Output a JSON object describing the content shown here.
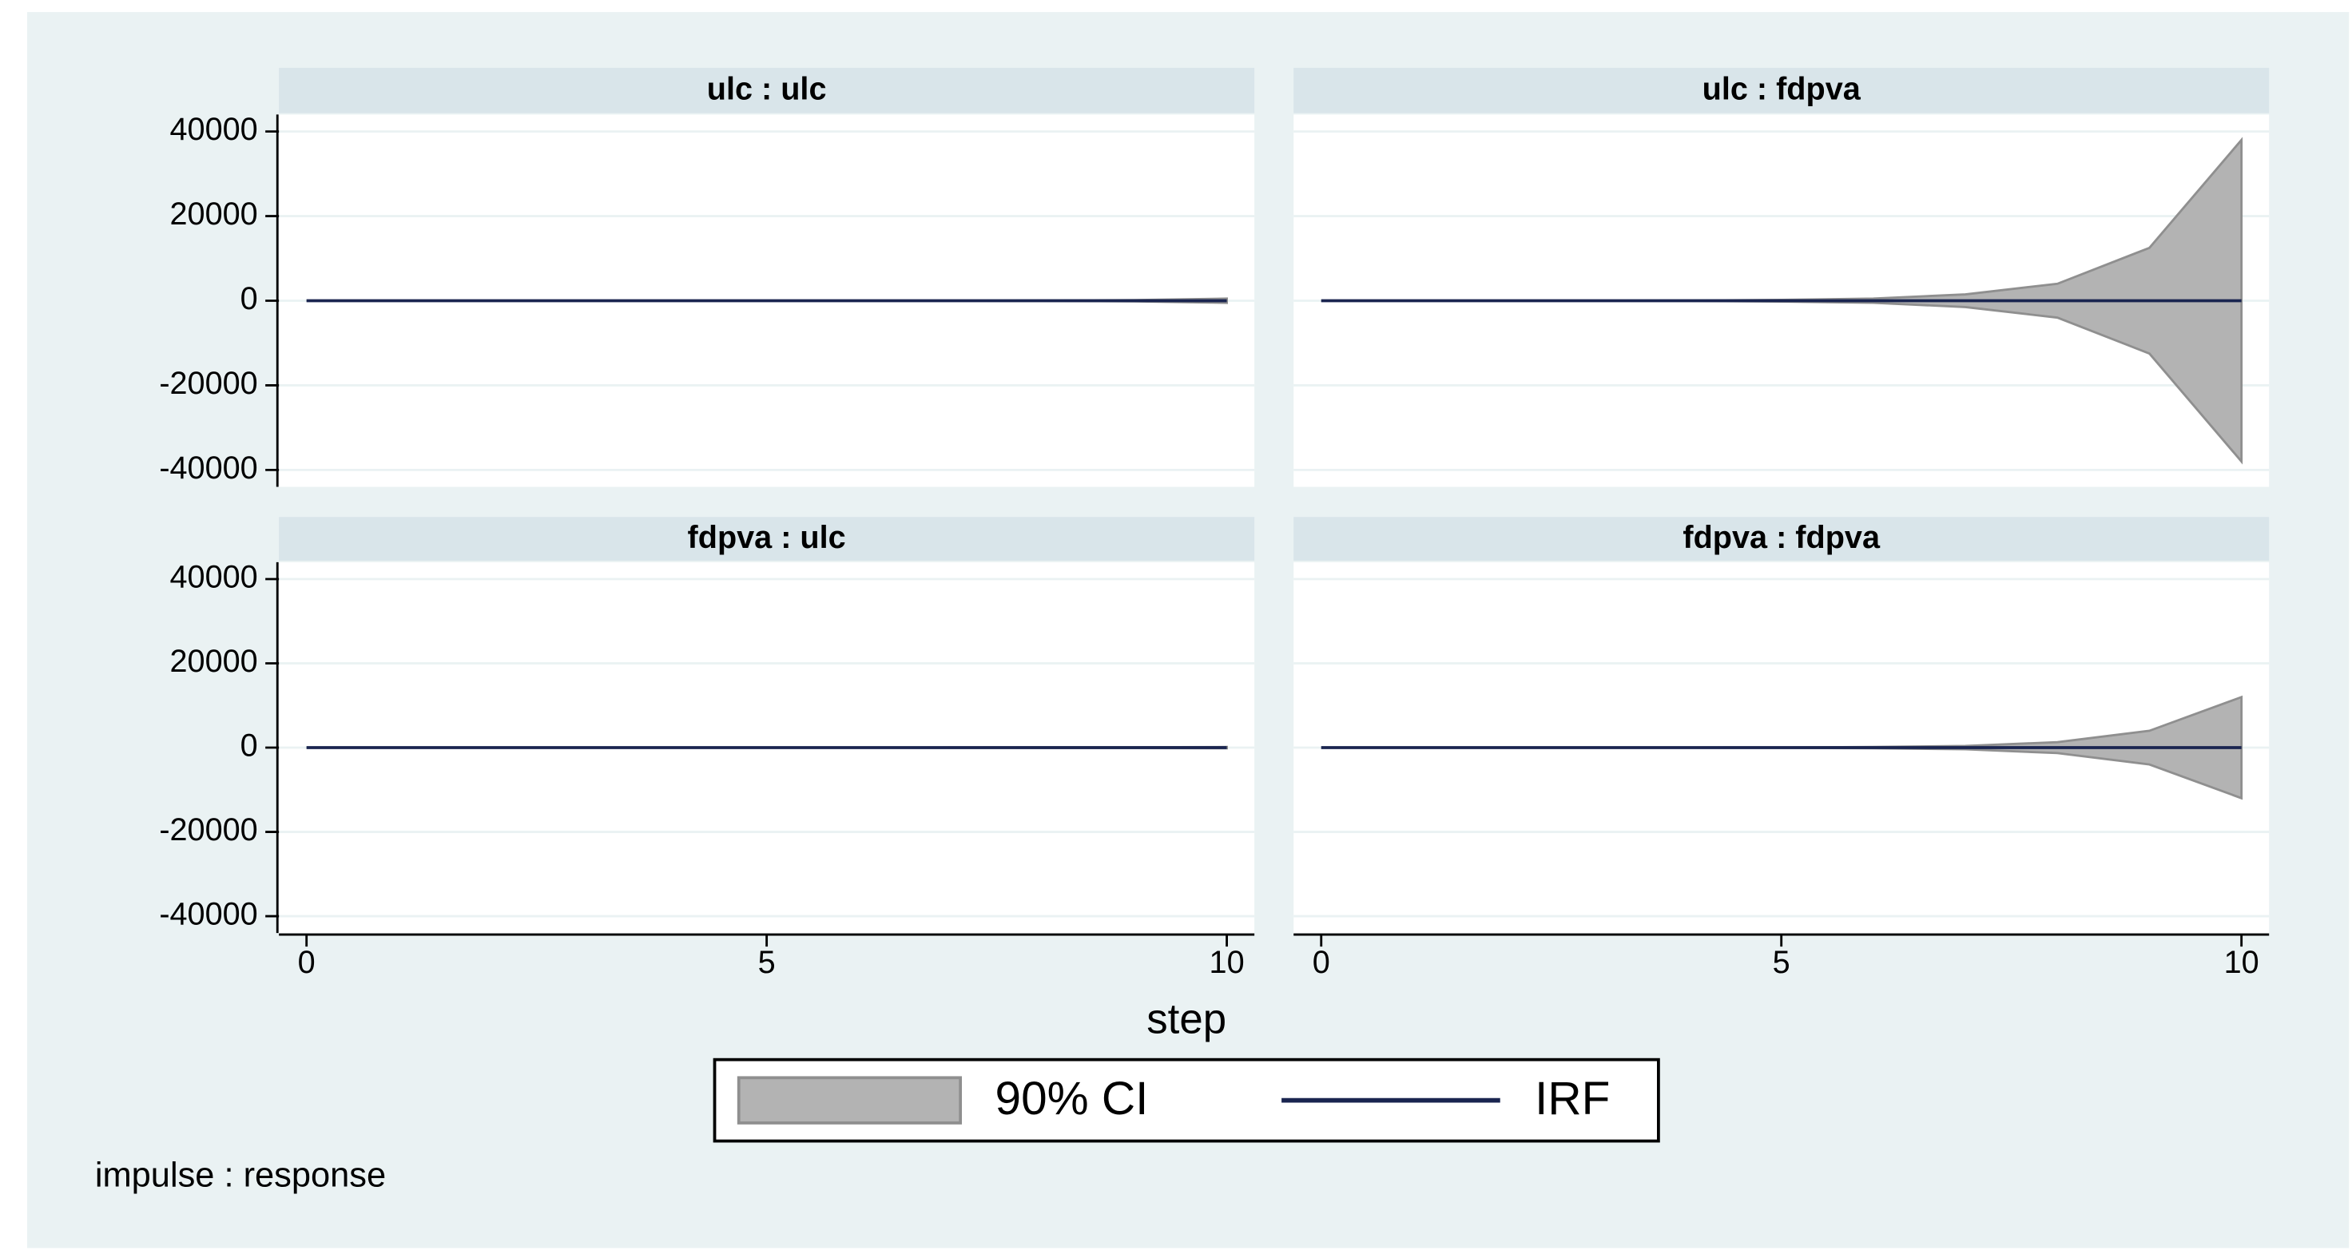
{
  "chart_data": {
    "type": "line",
    "xlabel": "step",
    "note": "impulse : response",
    "x": [
      0,
      1,
      2,
      3,
      4,
      5,
      6,
      7,
      8,
      9,
      10
    ],
    "xlim": [
      -0.3,
      10.3
    ],
    "xticks": [
      0,
      5,
      10
    ],
    "ylim": [
      -44000,
      44000
    ],
    "yticks": [
      -40000,
      -20000,
      0,
      20000,
      40000
    ],
    "grid": true,
    "series": [
      {
        "name": "90% CI",
        "color": "#b3b3b3"
      },
      {
        "name": "IRF",
        "color": "#1a2550"
      }
    ],
    "panels": [
      {
        "title": "ulc : ulc",
        "irf": [
          0,
          0,
          0,
          0,
          0,
          0,
          0,
          0,
          0,
          0,
          0
        ],
        "ci_upper": [
          0,
          0,
          0,
          0,
          0,
          0,
          0,
          0,
          50,
          150,
          500
        ],
        "ci_lower": [
          0,
          0,
          0,
          0,
          0,
          0,
          0,
          0,
          -50,
          -150,
          -500
        ]
      },
      {
        "title": "ulc : fdpva",
        "irf": [
          0,
          0,
          0,
          0,
          0,
          0,
          0,
          0,
          0,
          0,
          0
        ],
        "ci_upper": [
          0,
          0,
          0,
          0,
          50,
          200,
          500,
          1500,
          4000,
          12500,
          38000
        ],
        "ci_lower": [
          0,
          0,
          0,
          0,
          -50,
          -200,
          -500,
          -1500,
          -4000,
          -12500,
          -38000
        ]
      },
      {
        "title": "fdpva : ulc",
        "irf": [
          0,
          0,
          0,
          0,
          0,
          0,
          0,
          0,
          0,
          0,
          0
        ],
        "ci_upper": [
          0,
          0,
          0,
          0,
          0,
          0,
          0,
          50,
          80,
          100,
          150
        ],
        "ci_lower": [
          0,
          0,
          0,
          0,
          0,
          0,
          0,
          -50,
          -80,
          -100,
          -150
        ]
      },
      {
        "title": "fdpva : fdpva",
        "irf": [
          0,
          0,
          0,
          0,
          0,
          0,
          0,
          0,
          0,
          0,
          0
        ],
        "ci_upper": [
          0,
          0,
          0,
          0,
          20,
          50,
          150,
          400,
          1300,
          4000,
          12000
        ],
        "ci_lower": [
          0,
          0,
          0,
          0,
          -20,
          -50,
          -150,
          -400,
          -1300,
          -4000,
          -12000
        ]
      }
    ]
  }
}
